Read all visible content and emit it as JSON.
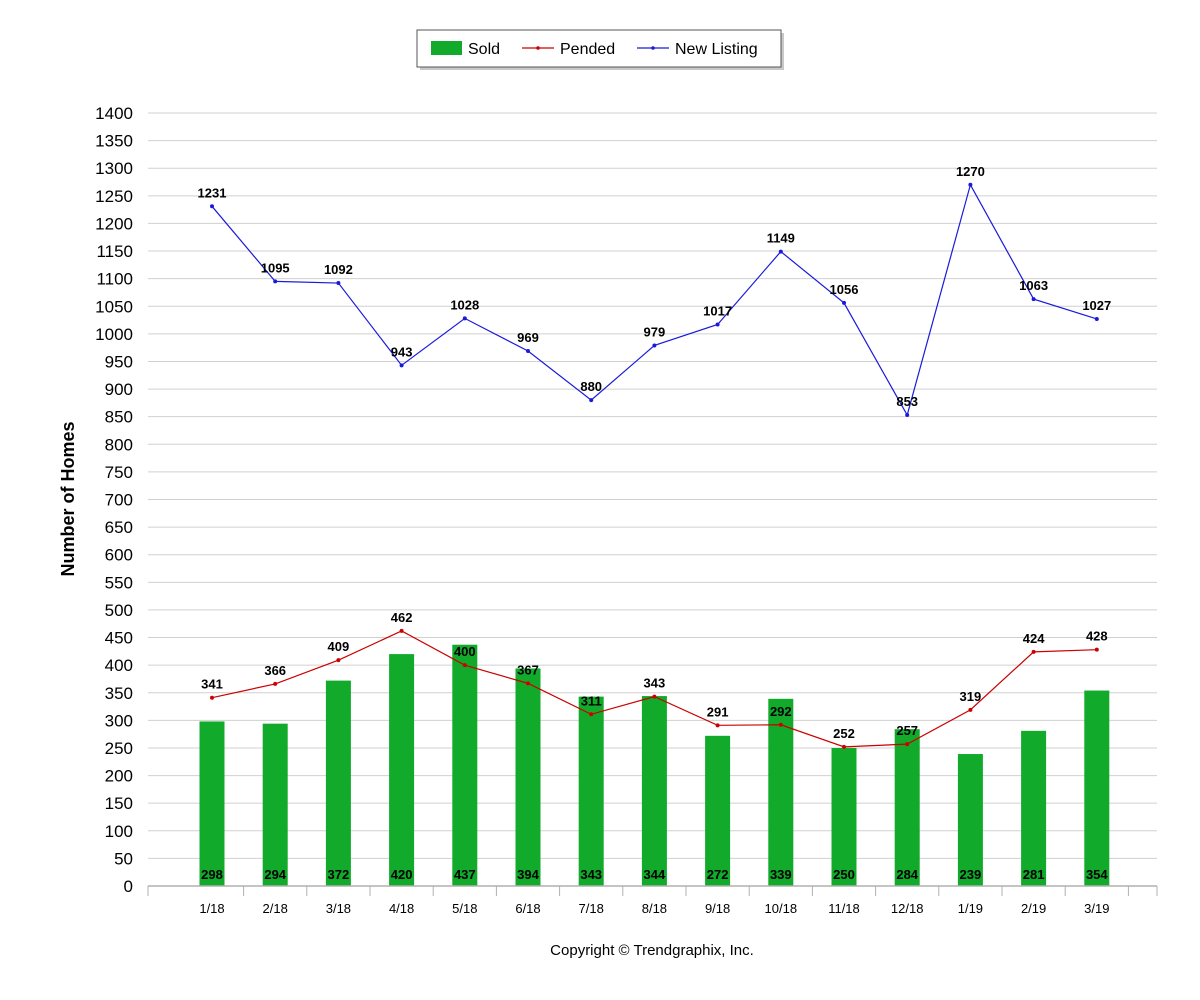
{
  "colors": {
    "sold": "#11aa2a",
    "pended": "#cc0000",
    "new_listing": "#1a1adb",
    "grid": "#d0d0d0",
    "axis": "#b0b0b0"
  },
  "legend": {
    "sold": "Sold",
    "pended": "Pended",
    "new_listing": "New Listing"
  },
  "footer": "Copyright © Trendgraphix, Inc.",
  "chart_data": {
    "type": "bar",
    "title": "",
    "xlabel": "",
    "ylabel": "Number of Homes",
    "ylim": [
      0,
      1400
    ],
    "y_ticks": [
      0,
      50,
      100,
      150,
      200,
      250,
      300,
      350,
      400,
      450,
      500,
      550,
      600,
      650,
      700,
      750,
      800,
      850,
      900,
      950,
      1000,
      1050,
      1100,
      1150,
      1200,
      1250,
      1300,
      1350,
      1400
    ],
    "grid": true,
    "legend_position": "top-center",
    "categories": [
      "1/18",
      "2/18",
      "3/18",
      "4/18",
      "5/18",
      "6/18",
      "7/18",
      "8/18",
      "9/18",
      "10/18",
      "11/18",
      "12/18",
      "1/19",
      "2/19",
      "3/19"
    ],
    "series": [
      {
        "name": "Sold",
        "kind": "bar",
        "values": [
          298,
          294,
          372,
          420,
          437,
          394,
          343,
          344,
          272,
          339,
          250,
          284,
          239,
          281,
          354
        ]
      },
      {
        "name": "Pended",
        "kind": "line",
        "values": [
          341,
          366,
          409,
          462,
          400,
          367,
          311,
          343,
          291,
          292,
          252,
          257,
          319,
          424,
          428
        ]
      },
      {
        "name": "New Listing",
        "kind": "line",
        "values": [
          1231,
          1095,
          1092,
          943,
          1028,
          969,
          880,
          979,
          1017,
          1149,
          1056,
          853,
          1270,
          1063,
          1027
        ]
      }
    ]
  }
}
